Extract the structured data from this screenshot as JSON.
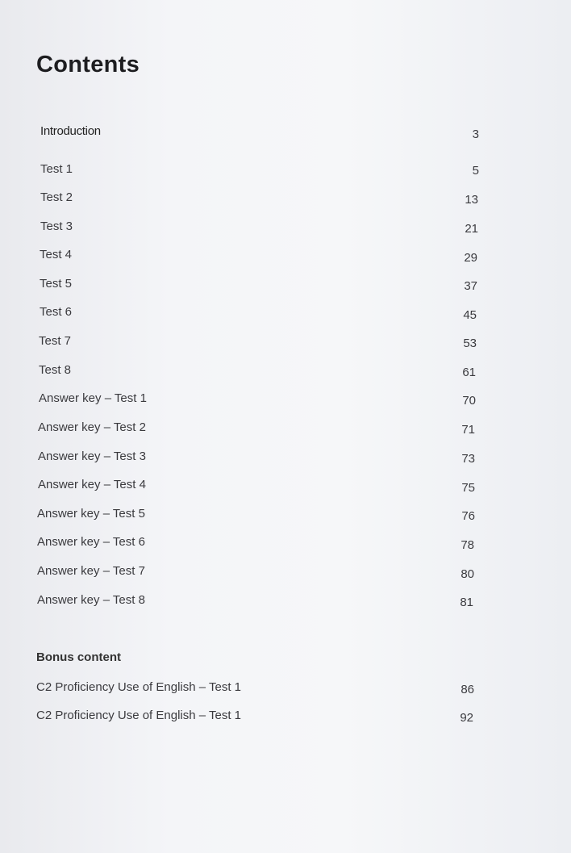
{
  "title": "Contents",
  "entries": [
    {
      "label": "Introduction",
      "page": "3"
    },
    {
      "label": "Test 1",
      "page": "5"
    },
    {
      "label": "Test 2",
      "page": "13"
    },
    {
      "label": "Test 3",
      "page": "21"
    },
    {
      "label": "Test 4",
      "page": "29"
    },
    {
      "label": "Test 5",
      "page": "37"
    },
    {
      "label": "Test 6",
      "page": "45"
    },
    {
      "label": "Test 7",
      "page": "53"
    },
    {
      "label": "Test 8",
      "page": "61"
    },
    {
      "label": "Answer key – Test 1",
      "page": "70"
    },
    {
      "label": "Answer key – Test 2",
      "page": "71"
    },
    {
      "label": "Answer key – Test 3",
      "page": "73"
    },
    {
      "label": "Answer key – Test 4",
      "page": "75"
    },
    {
      "label": "Answer key – Test 5",
      "page": "76"
    },
    {
      "label": "Answer key – Test 6",
      "page": "78"
    },
    {
      "label": "Answer key – Test 7",
      "page": "80"
    },
    {
      "label": "Answer key – Test 8",
      "page": "81"
    }
  ],
  "bonus": {
    "heading": "Bonus content",
    "entries": [
      {
        "label": "C2 Proficiency Use of English – Test 1",
        "page": "86"
      },
      {
        "label": "C2 Proficiency Use of English – Test 1",
        "page": "92"
      }
    ]
  }
}
